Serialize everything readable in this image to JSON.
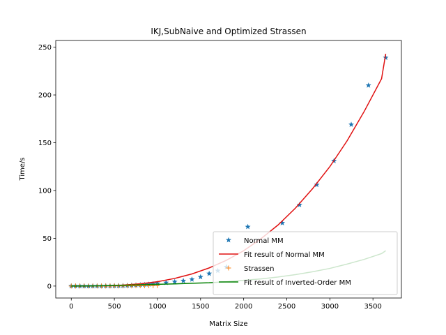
{
  "chart_data": {
    "type": "scatter",
    "title": "IKJ,SubNaive and Optimized Strassen",
    "xlabel": "Matrix Size",
    "ylabel": "Time/s",
    "xlim": [
      -180,
      3830
    ],
    "ylim": [
      -12.5,
      257
    ],
    "xticks": [
      0,
      500,
      1000,
      1500,
      2000,
      2500,
      3000,
      3500
    ],
    "yticks": [
      0,
      50,
      100,
      150,
      200,
      250
    ],
    "grid": false,
    "legend_position": "lower-right",
    "series": [
      {
        "name": "Normal MM",
        "kind": "scatter",
        "marker": "star",
        "color": "#1f77b4",
        "x": [
          0,
          50,
          100,
          150,
          200,
          250,
          300,
          350,
          400,
          450,
          500,
          550,
          600,
          650,
          700,
          750,
          800,
          850,
          900,
          950,
          1000,
          1100,
          1200,
          1300,
          1400,
          1500,
          1600,
          1700,
          1800,
          2048,
          2448,
          2648,
          2848,
          3048,
          3248,
          3448,
          3648
        ],
        "y": [
          0,
          0,
          0,
          0,
          0,
          0,
          0,
          0,
          0.1,
          0.1,
          0.2,
          0.3,
          0.4,
          0.6,
          0.8,
          1,
          1.2,
          1.5,
          1.8,
          2.2,
          2.8,
          3.5,
          4.5,
          5.5,
          7,
          9.5,
          13,
          16,
          20,
          62,
          66,
          85,
          106,
          131,
          169,
          210,
          239
        ]
      },
      {
        "name": "Fit result of Normal MM",
        "kind": "line",
        "color": "#e01010",
        "x": [
          0,
          200,
          400,
          600,
          800,
          1000,
          1200,
          1400,
          1600,
          1800,
          2000,
          2200,
          2400,
          2600,
          2800,
          3000,
          3200,
          3400,
          3600,
          3648
        ],
        "y": [
          0,
          0.04,
          0.3,
          1,
          2.4,
          4.6,
          8,
          12.7,
          19,
          27,
          37,
          49.5,
          64,
          81.5,
          102,
          125,
          152,
          183,
          217,
          243
        ]
      },
      {
        "name": "Strassen",
        "kind": "scatter",
        "marker": "plus",
        "color": "#ff7f0e",
        "x": [
          0,
          50,
          100,
          150,
          200,
          250,
          300,
          350,
          400,
          450,
          500,
          550,
          600,
          650,
          700,
          750,
          800,
          850,
          900,
          950,
          1000
        ],
        "y": [
          0,
          0,
          0,
          0,
          0,
          0,
          0,
          0,
          0,
          0,
          0.1,
          0.1,
          0.1,
          0.2,
          0.2,
          0.3,
          0.3,
          0.4,
          0.4,
          0.5,
          0.6
        ]
      },
      {
        "name": "Fit result of Inverted-Order MM",
        "kind": "line",
        "color": "#008000",
        "x": [
          0,
          200,
          400,
          600,
          800,
          1000,
          1200,
          1400,
          1600,
          1800,
          2000,
          2200,
          2400,
          2600,
          2800,
          3000,
          3200,
          3400,
          3600,
          3648
        ],
        "y": [
          0,
          0.1,
          0.4,
          0.8,
          1.3,
          1.8,
          2.3,
          2.9,
          3.5,
          4.5,
          6,
          7.5,
          9.5,
          12,
          15,
          18.5,
          23,
          28,
          34,
          37
        ]
      }
    ]
  }
}
